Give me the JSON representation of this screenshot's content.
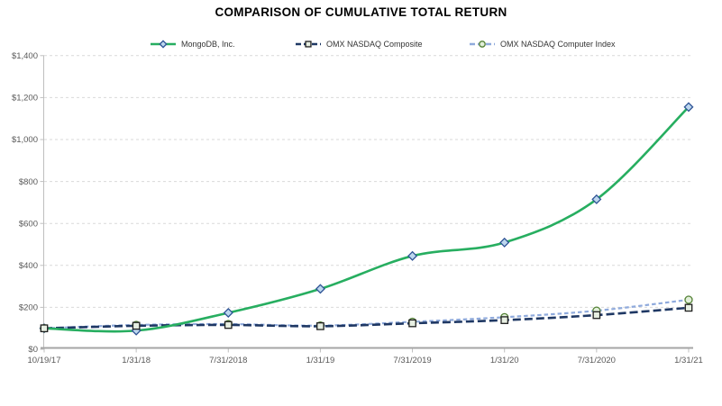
{
  "title": "COMPARISON OF CUMULATIVE TOTAL RETURN",
  "colors": {
    "mongodb_line": "#27AE60",
    "composite_line": "#1F3864",
    "computer_line": "#8FAADC",
    "diamond_fill": "#BDD7EE",
    "diamond_stroke": "#2E5395",
    "square_fill": "#E7EFE2",
    "square_stroke": "#1F1F1F",
    "circle_fill": "#E2EFDA",
    "circle_stroke": "#538135",
    "grid": "#D9D9D9",
    "axis_line": "#A6A6A6",
    "axis_minor": "#BFBFBF",
    "tick_label": "#595959",
    "title_text": "#000000"
  },
  "chart_data": {
    "type": "line",
    "title": "COMPARISON OF CUMULATIVE TOTAL RETURN",
    "x_labels": [
      "10/19/17",
      "1/31/18",
      "7/31/2018",
      "1/31/19",
      "7/31/2019",
      "1/31/20",
      "7/31/2020",
      "1/31/21"
    ],
    "y_tick_labels": [
      "$0",
      "$200",
      "$400",
      "$600",
      "$800",
      "$1,000",
      "$1,200",
      "$1,400"
    ],
    "ylim": [
      0,
      1400
    ],
    "y_tick_step": 200,
    "grid": "horizontal-dashed",
    "legend_position": "top",
    "series": [
      {
        "name": "MongoDB, Inc.",
        "line": "solid",
        "marker": "diamond",
        "color": "#27AE60",
        "marker_fill": "#BDD7EE",
        "marker_stroke": "#2E5395",
        "values": [
          100,
          89,
          174,
          288,
          445,
          509,
          715,
          1155
        ]
      },
      {
        "name": "OMX NASDAQ Composite",
        "line": "long-dash",
        "marker": "square",
        "color": "#1F3864",
        "marker_fill": "#E7EFE2",
        "marker_stroke": "#1F1F1F",
        "values": [
          100,
          112,
          116,
          110,
          124,
          139,
          163,
          198
        ]
      },
      {
        "name": "OMX NASDAQ Computer Index",
        "line": "short-dash",
        "marker": "circle",
        "color": "#8FAADC",
        "marker_fill": "#E2EFDA",
        "marker_stroke": "#538135",
        "values": [
          100,
          116,
          120,
          113,
          131,
          153,
          184,
          236
        ]
      }
    ]
  }
}
